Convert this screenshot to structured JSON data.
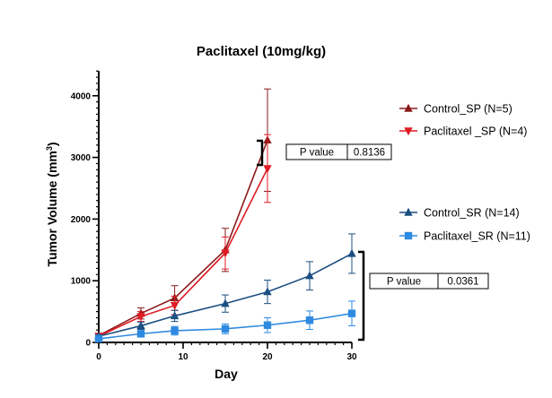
{
  "chart_data": {
    "type": "line",
    "title": "Paclitaxel (10mg/kg)",
    "xlabel": "Day",
    "ylabel_main": "Tumor Volume (mm",
    "ylabel_sup": "3",
    "ylabel_close": ")",
    "xlim": [
      0,
      30
    ],
    "ylim": [
      0,
      4400
    ],
    "xticks": [
      0,
      10,
      20,
      30
    ],
    "xtick_labels": [
      "0",
      "10",
      "20",
      "30"
    ],
    "yticks": [
      0,
      1000,
      2000,
      3000,
      4000
    ],
    "ytick_labels": [
      "0",
      "1000",
      "2000",
      "3000",
      "4000"
    ],
    "series": [
      {
        "name": "Control_SP (N=5)",
        "color": "#8b1a1a",
        "marker": "triangle-up",
        "x": [
          0,
          5,
          9,
          15,
          20
        ],
        "y": [
          110,
          470,
          720,
          1500,
          3280
        ],
        "err": [
          40,
          90,
          200,
          350,
          830
        ]
      },
      {
        "name": "Paclitaxel _SP (N=4)",
        "color": "#e01b24",
        "marker": "triangle-down",
        "x": [
          0,
          5,
          9,
          15,
          20
        ],
        "y": [
          100,
          420,
          600,
          1450,
          2820
        ],
        "err": [
          40,
          80,
          150,
          260,
          550
        ]
      },
      {
        "name": "Control_SR (N=14)",
        "color": "#1c4f82",
        "marker": "triangle-up",
        "x": [
          0,
          5,
          9,
          15,
          20,
          25,
          30
        ],
        "y": [
          100,
          270,
          430,
          630,
          820,
          1080,
          1440
        ],
        "err": [
          25,
          60,
          90,
          140,
          190,
          230,
          320
        ]
      },
      {
        "name": "Paclitaxel_SR (N=11)",
        "color": "#2d8ae0",
        "marker": "square",
        "x": [
          0,
          5,
          9,
          15,
          20,
          25,
          30
        ],
        "y": [
          60,
          140,
          190,
          220,
          280,
          360,
          470
        ],
        "err": [
          20,
          50,
          70,
          80,
          120,
          150,
          200
        ]
      }
    ],
    "annotations": [
      {
        "label": "P value",
        "value": "0.8136",
        "compares": [
          "Control_SP (N=5)",
          "Paclitaxel _SP (N=4)"
        ]
      },
      {
        "label": "P value",
        "value": "0.0361",
        "compares": [
          "Control_SR (N=14)",
          "Paclitaxel_SR (N=11)"
        ]
      }
    ]
  }
}
